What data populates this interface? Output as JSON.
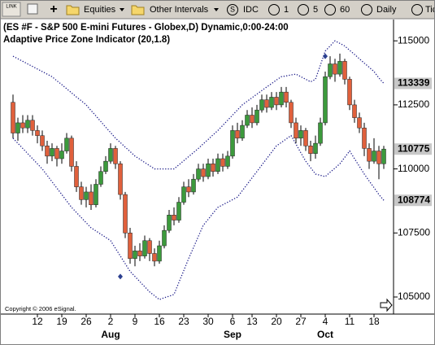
{
  "toolbar": {
    "items": [
      "Equities",
      "Other Intervals",
      "S",
      "IDC",
      "1",
      "5",
      "60",
      "Daily",
      "Tick"
    ],
    "link": "LINK"
  },
  "chart_data": {
    "type": "candlestick",
    "title": "(ES #F - S&P 500 E-mini Futures - Globex,D) Dynamic,0:00-24:00",
    "subtitle": "Adaptive Price Zone Indicator (20,1.8)",
    "copyright": "Copyright © 2006 eSignal.",
    "categories": [
      null,
      null,
      null,
      null,
      null,
      "12",
      null,
      null,
      null,
      null,
      "19",
      null,
      null,
      null,
      null,
      "26",
      null,
      null,
      null,
      null,
      "2",
      null,
      null,
      null,
      null,
      "9",
      null,
      null,
      null,
      null,
      "16",
      null,
      null,
      null,
      null,
      "23",
      null,
      null,
      null,
      null,
      "30",
      null,
      null,
      null,
      null,
      "6",
      null,
      null,
      null,
      "13",
      null,
      null,
      null,
      null,
      "20",
      null,
      null,
      null,
      null,
      "27",
      null,
      null,
      null,
      null,
      "4",
      null,
      null,
      null,
      null,
      "11",
      null,
      null,
      null,
      null,
      "18",
      null,
      null
    ],
    "months": [
      null,
      null,
      null,
      null,
      null,
      null,
      null,
      null,
      null,
      null,
      null,
      null,
      null,
      null,
      null,
      null,
      null,
      null,
      null,
      null,
      "Aug",
      null,
      null,
      null,
      null,
      null,
      null,
      null,
      null,
      null,
      null,
      null,
      null,
      null,
      null,
      null,
      null,
      null,
      null,
      null,
      null,
      null,
      null,
      null,
      null,
      "Sep",
      null,
      null,
      null,
      null,
      null,
      null,
      null,
      null,
      null,
      null,
      null,
      null,
      null,
      null,
      null,
      null,
      null,
      null,
      "Oct",
      null,
      null,
      null,
      null,
      null,
      null,
      null,
      null,
      null,
      null,
      null,
      null
    ],
    "open": [
      112600,
      111400,
      111800,
      111600,
      111900,
      111500,
      111300,
      110900,
      110500,
      110800,
      110400,
      110700,
      111200,
      110100,
      109300,
      108800,
      109100,
      108600,
      109400,
      109900,
      110300,
      110800,
      110200,
      109000,
      107500,
      106500,
      106800,
      106600,
      107200,
      106700,
      106400,
      107000,
      107600,
      108200,
      108000,
      108700,
      109300,
      109100,
      109600,
      110000,
      109700,
      110200,
      109900,
      110400,
      110100,
      110500,
      111500,
      111200,
      111700,
      112100,
      111800,
      112300,
      112700,
      112400,
      112800,
      112500,
      113000,
      112600,
      111800,
      111200,
      111500,
      110900,
      110600,
      111000,
      111800,
      113600,
      114100,
      113700,
      114200,
      113500,
      112500,
      112000,
      111600,
      110800,
      110300,
      110700,
      110200
    ],
    "high": [
      112900,
      112000,
      112100,
      112100,
      112100,
      111700,
      111500,
      111100,
      111000,
      110900,
      111000,
      111400,
      111300,
      110300,
      109500,
      109300,
      109400,
      109600,
      110100,
      110500,
      111000,
      110900,
      110300,
      109100,
      107700,
      107000,
      107100,
      107400,
      107300,
      106900,
      107200,
      107800,
      108400,
      108500,
      108900,
      109500,
      109600,
      109800,
      110200,
      110200,
      110400,
      110400,
      110600,
      110600,
      110700,
      111700,
      111800,
      111900,
      112300,
      112400,
      112500,
      112900,
      112900,
      113000,
      113000,
      113200,
      113200,
      112700,
      112000,
      111700,
      111600,
      111100,
      111300,
      112000,
      113800,
      114400,
      114300,
      114500,
      114300,
      113600,
      112700,
      112200,
      111800,
      111000,
      111200,
      110900,
      110900
    ],
    "low": [
      111200,
      111100,
      111400,
      111400,
      111300,
      111000,
      110700,
      110200,
      110300,
      110100,
      110200,
      110600,
      109900,
      109100,
      108600,
      108500,
      108400,
      108500,
      109300,
      109800,
      110200,
      110000,
      108800,
      107300,
      106300,
      106200,
      106400,
      106500,
      106400,
      106200,
      106300,
      106900,
      107500,
      107800,
      107900,
      108600,
      108900,
      109000,
      109500,
      109500,
      109600,
      109700,
      109800,
      109900,
      110000,
      110400,
      111000,
      111100,
      111600,
      111600,
      111700,
      112200,
      112200,
      112300,
      112300,
      112400,
      112400,
      111600,
      111000,
      110900,
      110700,
      110300,
      110400,
      110900,
      111700,
      113500,
      113400,
      113600,
      113300,
      112300,
      111800,
      111400,
      110500,
      110000,
      110200,
      109600,
      110000
    ],
    "close": [
      111400,
      111800,
      111600,
      111900,
      111500,
      111300,
      110900,
      110500,
      110800,
      110400,
      110700,
      111200,
      110100,
      109300,
      108800,
      109100,
      108600,
      109400,
      109900,
      110300,
      110800,
      110200,
      109000,
      107500,
      106500,
      106800,
      106600,
      107200,
      106700,
      106400,
      107000,
      107600,
      108200,
      108000,
      108700,
      109300,
      109100,
      109600,
      110000,
      109700,
      110200,
      109900,
      110400,
      110100,
      110500,
      111500,
      111200,
      111700,
      112100,
      111800,
      112300,
      112700,
      112400,
      112800,
      112500,
      113000,
      112600,
      111800,
      111200,
      111500,
      110900,
      110600,
      111000,
      111800,
      113600,
      114100,
      113700,
      114200,
      113500,
      112500,
      112000,
      111600,
      110800,
      110300,
      110700,
      110200,
      110775
    ],
    "up_color": "#3c9a3c",
    "down_color": "#e0603c",
    "bands": {
      "color": "#1e1e8a",
      "upper": [
        114400,
        114300,
        114200,
        114100,
        114000,
        113900,
        113800,
        113700,
        113600,
        113440,
        113290,
        113130,
        112970,
        112810,
        112660,
        112500,
        112280,
        112070,
        111850,
        111630,
        111420,
        111200,
        111030,
        110850,
        110680,
        110500,
        110380,
        110250,
        110130,
        110000,
        110000,
        110000,
        110000,
        110000,
        110160,
        110320,
        110480,
        110640,
        110800,
        110980,
        111150,
        111330,
        111500,
        111700,
        111900,
        112100,
        112300,
        112500,
        112640,
        112780,
        112920,
        113060,
        113200,
        113330,
        113470,
        113600,
        113630,
        113670,
        113700,
        113600,
        113500,
        113400,
        113500,
        114050,
        114600,
        114800,
        115000,
        114900,
        114800,
        114630,
        114470,
        114300,
        114130,
        113970,
        113800,
        113550,
        113339
      ],
      "lower": [
        111200,
        111000,
        110800,
        110600,
        110400,
        110200,
        110000,
        109750,
        109500,
        109250,
        109000,
        108750,
        108500,
        108300,
        108100,
        107900,
        107700,
        107580,
        107450,
        107330,
        107200,
        106900,
        106600,
        106300,
        106000,
        105800,
        105600,
        105400,
        105200,
        105050,
        104900,
        104970,
        105030,
        105100,
        105570,
        106030,
        106500,
        106930,
        107370,
        107800,
        108030,
        108270,
        108500,
        108600,
        108700,
        108800,
        108900,
        109150,
        109400,
        109650,
        109900,
        110150,
        110400,
        110650,
        110900,
        111030,
        111170,
        111300,
        110970,
        110630,
        110300,
        110050,
        109800,
        109750,
        109700,
        109870,
        110030,
        110200,
        110450,
        110700,
        110400,
        110100,
        109800,
        109530,
        109270,
        109000,
        108774
      ]
    },
    "signals": {
      "color": "#2b3f8f",
      "values": [
        null,
        null,
        null,
        null,
        null,
        null,
        null,
        null,
        null,
        null,
        null,
        null,
        null,
        null,
        null,
        null,
        null,
        null,
        null,
        null,
        null,
        null,
        105800,
        null,
        null,
        null,
        null,
        null,
        null,
        null,
        null,
        null,
        null,
        null,
        null,
        null,
        null,
        null,
        null,
        null,
        null,
        null,
        null,
        null,
        null,
        null,
        null,
        null,
        null,
        null,
        null,
        null,
        null,
        null,
        null,
        null,
        null,
        null,
        null,
        null,
        null,
        null,
        null,
        null,
        114400,
        null,
        null,
        null,
        null,
        null,
        null,
        null,
        null,
        null,
        null,
        null,
        null
      ]
    },
    "ylim": [
      104365,
      115800
    ],
    "yticks": [
      105000,
      107500,
      110000,
      112500,
      115000
    ]
  }
}
